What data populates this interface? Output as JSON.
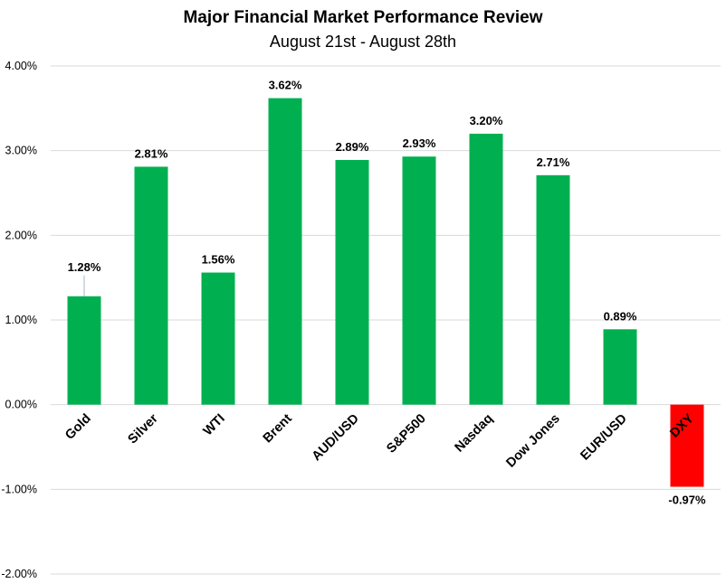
{
  "chart_data": {
    "type": "bar",
    "title": "Major Financial Market Performance Review",
    "subtitle": "August 21st - August 28th",
    "xlabel": "",
    "ylabel": "",
    "categories": [
      "Gold",
      "Silver",
      "WTI",
      "Brent",
      "AUD/USD",
      "S&P500",
      "Nasdaq",
      "Dow Jones",
      "EUR/USD",
      "DXY"
    ],
    "values": [
      1.28,
      2.81,
      1.56,
      3.62,
      2.89,
      2.93,
      3.2,
      2.71,
      0.89,
      -0.97
    ],
    "data_labels": [
      "1.28%",
      "2.81%",
      "1.56%",
      "3.62%",
      "2.89%",
      "2.93%",
      "3.20%",
      "2.71%",
      "0.89%",
      "-0.97%"
    ],
    "ylim": [
      -2,
      4
    ],
    "yticks": [
      4,
      3,
      2,
      1,
      0,
      -1,
      -2
    ],
    "ytick_labels": [
      "4.00%",
      "3.00%",
      "2.00%",
      "1.00%",
      "0.00%",
      "-1.00%",
      "-2.00%"
    ],
    "grid": true,
    "legend": "none",
    "colors": {
      "positive": "#00B050",
      "negative": "#FF0000",
      "grid": "#D9D9D9"
    }
  }
}
